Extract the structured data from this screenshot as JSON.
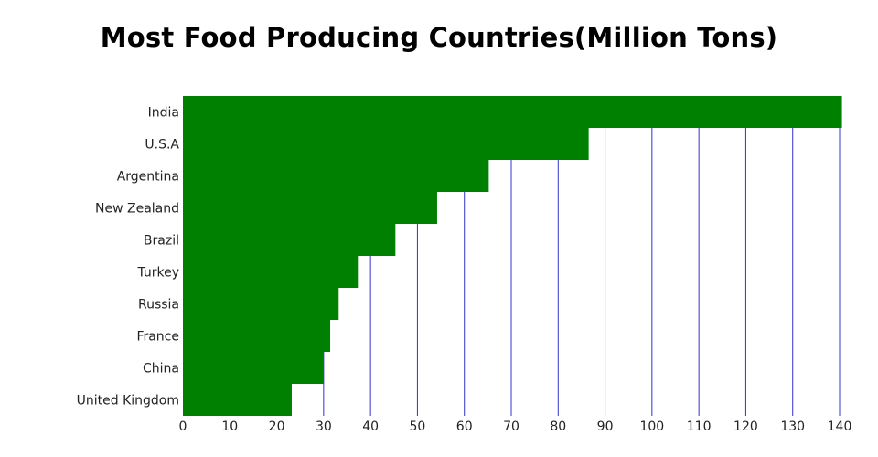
{
  "chart_data": {
    "type": "bar",
    "orientation": "horizontal",
    "title": "Most Food Producing Countries(Million Tons)",
    "categories": [
      "India",
      "U.S.A",
      "Argentina",
      "New Zealand",
      "Brazil",
      "Turkey",
      "Russia",
      "France",
      "China",
      "United Kingdom"
    ],
    "values": [
      141,
      86.5,
      65.2,
      54.2,
      45.3,
      37.3,
      33.2,
      31.4,
      30.0,
      23.2
    ],
    "xlim": [
      0,
      140
    ],
    "xticks": [
      "0",
      "10",
      "20",
      "30",
      "40",
      "50",
      "60",
      "70",
      "80",
      "90",
      "100",
      "110",
      "120",
      "130",
      "140"
    ],
    "xlabel": "",
    "ylabel": "",
    "grid": "vertical",
    "bar_color": "#008000",
    "grid_color": "#3333cc"
  }
}
